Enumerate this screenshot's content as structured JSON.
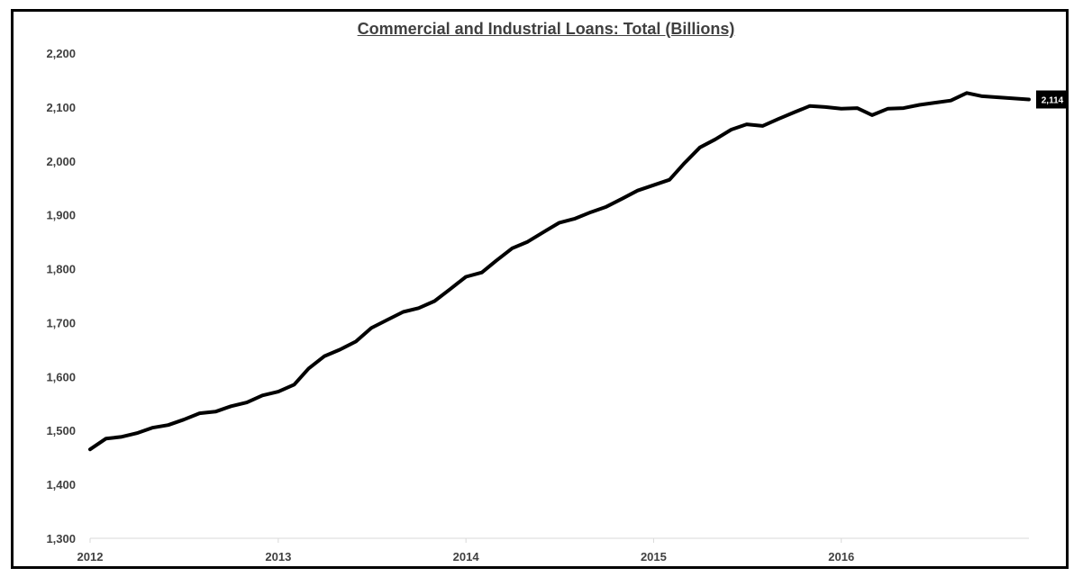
{
  "chart_data": {
    "type": "line",
    "title": "Commercial and Industrial Loans: Total (Billions)",
    "xlabel": "",
    "ylabel": "",
    "ylim": [
      1300,
      2200
    ],
    "xlim": [
      "2012-01-01",
      "2016-12-31"
    ],
    "y_ticks": [
      "1,300",
      "1,400",
      "1,500",
      "1,600",
      "1,700",
      "1,800",
      "1,900",
      "2,000",
      "2,100",
      "2,200"
    ],
    "x_ticks": [
      "2012",
      "2013",
      "2014",
      "2015",
      "2016"
    ],
    "grid": false,
    "last_value_label": "2,114",
    "line_color": "#000000",
    "series": [
      {
        "x": [
          "2012-01-01",
          "2012-02-01",
          "2012-03-01",
          "2012-04-01",
          "2012-05-01",
          "2012-06-01",
          "2012-07-01",
          "2012-08-01",
          "2012-09-01",
          "2012-10-01",
          "2012-11-01",
          "2012-12-01",
          "2013-01-01",
          "2013-02-01",
          "2013-03-01",
          "2013-04-01",
          "2013-05-01",
          "2013-06-01",
          "2013-07-01",
          "2013-08-01",
          "2013-09-01",
          "2013-10-01",
          "2013-11-01",
          "2013-12-01",
          "2014-01-01",
          "2014-02-01",
          "2014-03-01",
          "2014-04-01",
          "2014-05-01",
          "2014-06-01",
          "2014-07-01",
          "2014-08-01",
          "2014-09-01",
          "2014-10-01",
          "2014-11-01",
          "2014-12-01",
          "2015-01-01",
          "2015-02-01",
          "2015-03-01",
          "2015-04-01",
          "2015-05-01",
          "2015-06-01",
          "2015-07-01",
          "2015-08-01",
          "2015-09-01",
          "2015-10-01",
          "2015-11-01",
          "2015-12-01",
          "2016-01-01",
          "2016-02-01",
          "2016-03-01",
          "2016-04-01",
          "2016-05-01",
          "2016-06-01",
          "2016-07-01",
          "2016-08-01",
          "2016-09-01",
          "2016-10-01",
          "2016-11-01",
          "2016-12-31"
        ],
        "values": [
          1465,
          1485,
          1488,
          1495,
          1505,
          1510,
          1520,
          1532,
          1535,
          1545,
          1552,
          1565,
          1572,
          1585,
          1615,
          1638,
          1650,
          1665,
          1690,
          1705,
          1720,
          1727,
          1740,
          1762,
          1785,
          1793,
          1815,
          1838,
          1850,
          1868,
          1885,
          1893,
          1905,
          1915,
          1930,
          1945,
          1955,
          1965,
          1995,
          2025,
          2040,
          2058,
          2068,
          2065,
          2078,
          2090,
          2102,
          2100,
          2097,
          2098,
          2085,
          2097,
          2098,
          2104,
          2108,
          2112,
          2126,
          2120,
          2118,
          2114
        ]
      }
    ]
  }
}
